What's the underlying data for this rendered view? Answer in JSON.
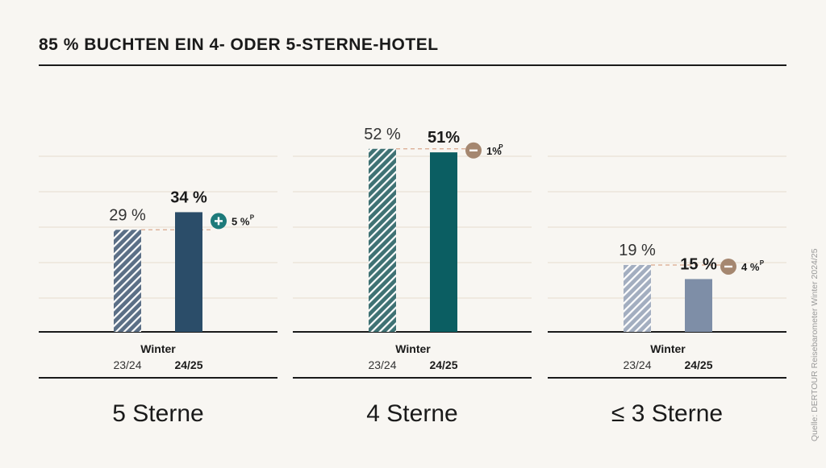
{
  "title": "85 % BUCHTEN EIN 4- ODER 5-STERNE-HOTEL",
  "source": "Quelle: DERTOUR Reisebarometer Winter 2024/25",
  "colors": {
    "background": "#f8f6f2",
    "grid": "#e6dccf",
    "plus_badge": "#1d7a7a",
    "minus_badge": "#a58770",
    "reference_line": "#d9a88d"
  },
  "chart_data": {
    "type": "bar",
    "season_label": "Winter",
    "categories": [
      "23/24",
      "24/25"
    ],
    "groups": [
      {
        "name": "5 Sterne",
        "values": [
          29,
          34
        ],
        "value_labels": [
          "29 %",
          "34 %"
        ],
        "change": {
          "sign": "+",
          "label": "5 %",
          "superscript": "P"
        },
        "color": "#2b4d69",
        "hatch_color": "#5b6f86"
      },
      {
        "name": "4 Sterne",
        "values": [
          52,
          51
        ],
        "value_labels": [
          "52 %",
          "51%"
        ],
        "change": {
          "sign": "-",
          "label": "1%",
          "superscript": "P"
        },
        "color": "#0b5e62",
        "hatch_color": "#3f7274"
      },
      {
        "name": "≤ 3 Sterne",
        "values": [
          19,
          15
        ],
        "value_labels": [
          "19 %",
          "15 %"
        ],
        "change": {
          "sign": "-",
          "label": "4 %",
          "superscript": "P"
        },
        "color": "#7e8ea7",
        "hatch_color": "#a3aec0"
      }
    ],
    "ylim": [
      0,
      60
    ],
    "grid": true
  }
}
